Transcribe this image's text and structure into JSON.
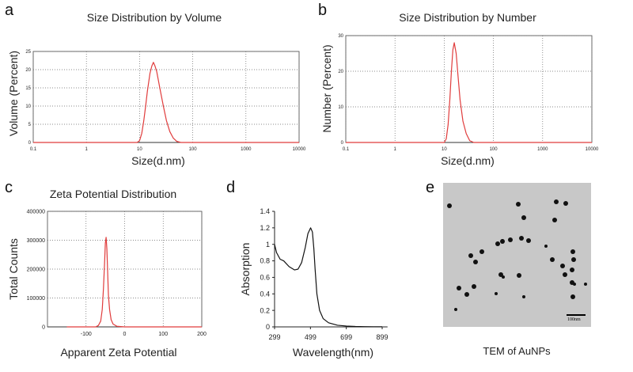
{
  "panels": {
    "a": {
      "letter": "a"
    },
    "b": {
      "letter": "b"
    },
    "c": {
      "letter": "c"
    },
    "d": {
      "letter": "d"
    },
    "e": {
      "letter": "e",
      "caption": "TEM of AuNPs",
      "scale_bar_label": "100nm",
      "background": "#c8c8c8",
      "particle_color": "#111111"
    }
  },
  "chart_data": [
    {
      "id": "a",
      "type": "line",
      "title": "Size Distribution by Volume",
      "xlabel": "Size(d.nm)",
      "ylabel": "Volume (Percent)",
      "xscale": "log",
      "xlim": [
        0.1,
        10000
      ],
      "ylim": [
        0,
        25
      ],
      "xticks": [
        0.1,
        1,
        10,
        100,
        1000,
        10000
      ],
      "xtick_labels": [
        "0.1",
        "1",
        "10",
        "100",
        "1000",
        "10000"
      ],
      "yticks": [
        0,
        5,
        10,
        15,
        20,
        25
      ],
      "grid": true,
      "line_color": "#e03c3c",
      "series": [
        {
          "x": [
            0.1,
            9,
            10,
            11,
            12,
            13,
            14,
            15.7,
            17,
            18.2,
            19.5,
            21,
            24,
            28,
            32,
            37,
            43,
            50,
            60,
            10000
          ],
          "y": [
            0,
            0,
            0.5,
            2.5,
            6,
            10,
            14,
            19,
            21,
            22,
            21,
            19.5,
            15,
            10,
            6,
            3,
            1.2,
            0.3,
            0,
            0
          ]
        }
      ]
    },
    {
      "id": "b",
      "type": "line",
      "title": "Size Distribution by Number",
      "xlabel": "Size(d.nm)",
      "ylabel": "Number (Percent)",
      "xscale": "log",
      "xlim": [
        0.1,
        10000
      ],
      "ylim": [
        0,
        30
      ],
      "xticks": [
        0.1,
        1,
        10,
        100,
        1000,
        10000
      ],
      "xtick_labels": [
        "0.1",
        "1",
        "10",
        "100",
        "1000",
        "10000"
      ],
      "yticks": [
        0,
        10,
        20,
        30
      ],
      "grid": true,
      "line_color": "#e03c3c",
      "series": [
        {
          "x": [
            0.1,
            10,
            11,
            12,
            13,
            14,
            15,
            16,
            17.5,
            19,
            21,
            24,
            28,
            33,
            40,
            10000
          ],
          "y": [
            0,
            0,
            1,
            5,
            12,
            20,
            26,
            28,
            25,
            19,
            12,
            6,
            2.5,
            0.5,
            0,
            0
          ]
        }
      ]
    },
    {
      "id": "c",
      "type": "line",
      "title": "Zeta Potential Distribution",
      "xlabel": "Apparent Zeta Potential",
      "ylabel": "Total Counts",
      "xlim": [
        -200,
        200
      ],
      "ylim": [
        0,
        400000
      ],
      "xticks": [
        -100,
        0,
        100,
        200
      ],
      "xtick_labels": [
        "-100",
        "0",
        "100",
        "200"
      ],
      "yticks": [
        0,
        100000,
        200000,
        300000,
        400000
      ],
      "ytick_labels": [
        "0",
        "100000",
        "200000",
        "300000",
        "400000"
      ],
      "grid": true,
      "line_color": "#e03c3c",
      "series": [
        {
          "x": [
            -150,
            -75,
            -68,
            -62,
            -58,
            -55,
            -52,
            -50,
            -48,
            -46,
            -44,
            -42,
            -39,
            -35,
            -30,
            -20,
            0,
            200
          ],
          "y": [
            0,
            0,
            5000,
            20000,
            60000,
            130000,
            220000,
            290000,
            310000,
            270000,
            190000,
            110000,
            60000,
            25000,
            10000,
            2000,
            0,
            0
          ]
        }
      ]
    },
    {
      "id": "d",
      "type": "line",
      "xlabel": "Wavelength(nm)",
      "ylabel": "Absorption",
      "xlim": [
        299,
        899
      ],
      "ylim": [
        0,
        1.4
      ],
      "xticks": [
        299,
        499,
        699,
        899
      ],
      "xtick_labels": [
        "299",
        "499",
        "699",
        "899"
      ],
      "yticks": [
        0,
        0.2,
        0.4,
        0.6,
        0.8,
        1,
        1.2,
        1.4
      ],
      "ytick_labels": [
        "0",
        "0.2",
        "0.4",
        "0.6",
        "0.8",
        "1",
        "1.2",
        "1.4"
      ],
      "grid": false,
      "line_color": "#111111",
      "series": [
        {
          "x": [
            299,
            310,
            330,
            350,
            380,
            410,
            430,
            450,
            470,
            485,
            500,
            510,
            518,
            525,
            535,
            550,
            570,
            600,
            650,
            700,
            750,
            800,
            850,
            899
          ],
          "y": [
            1.0,
            0.9,
            0.82,
            0.8,
            0.73,
            0.69,
            0.7,
            0.78,
            0.96,
            1.13,
            1.2,
            1.15,
            0.95,
            0.7,
            0.4,
            0.2,
            0.1,
            0.05,
            0.02,
            0.01,
            0.005,
            0.003,
            0.002,
            0.001
          ]
        }
      ]
    }
  ]
}
